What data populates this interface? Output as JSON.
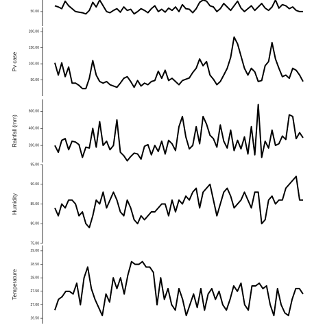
{
  "chart_data": [
    {
      "type": "line",
      "color": "#000000",
      "ylim": [
        25,
        70
      ],
      "yticks": [
        {
          "value": 50,
          "label": "50.00"
        }
      ],
      "values": [
        60,
        58,
        55,
        68,
        60,
        55,
        50,
        49,
        48,
        46,
        52,
        66,
        58,
        70,
        60,
        50,
        48,
        52,
        55,
        49,
        58,
        52,
        54,
        46,
        50,
        55,
        52,
        48,
        55,
        60,
        50,
        54,
        49,
        56,
        52,
        58,
        50,
        62,
        55,
        54,
        48,
        55,
        66,
        70,
        68,
        60,
        58,
        50,
        55,
        64,
        58,
        52,
        60,
        68,
        56,
        50,
        55,
        60,
        52,
        58,
        64,
        56,
        52,
        58,
        70,
        56,
        62,
        60,
        55,
        58,
        52,
        50,
        50
      ]
    },
    {
      "type": "line",
      "color": "#000000",
      "ylabel": "Pv case",
      "ylim": [
        0,
        213
      ],
      "yticks": [
        {
          "value": 50,
          "label": "50.00"
        },
        {
          "value": 100,
          "label": "100.00"
        },
        {
          "value": 150,
          "label": "150.00"
        },
        {
          "value": 200,
          "label": "200.00"
        }
      ],
      "values": [
        103,
        65,
        103,
        60,
        90,
        40,
        40,
        33,
        23,
        23,
        55,
        110,
        65,
        45,
        40,
        45,
        35,
        31,
        27,
        40,
        55,
        60,
        45,
        27,
        48,
        31,
        40,
        35,
        45,
        48,
        77,
        55,
        80,
        48,
        55,
        45,
        35,
        48,
        52,
        56,
        73,
        86,
        115,
        94,
        107,
        65,
        52,
        35,
        45,
        65,
        86,
        120,
        183,
        162,
        124,
        86,
        65,
        86,
        75,
        45,
        48,
        94,
        107,
        166,
        115,
        86,
        60,
        65,
        55,
        86,
        80,
        65,
        45
      ]
    },
    {
      "type": "line",
      "color": "#000000",
      "ylabel": "Rainfall (mm)",
      "ylim": [
        0,
        740
      ],
      "yticks": [
        {
          "value": 200,
          "label": "200.00"
        },
        {
          "value": 400,
          "label": "400.00"
        },
        {
          "value": 600,
          "label": "600.00"
        }
      ],
      "values": [
        200,
        120,
        260,
        280,
        150,
        250,
        240,
        210,
        60,
        180,
        170,
        400,
        180,
        480,
        200,
        250,
        150,
        200,
        500,
        120,
        80,
        20,
        70,
        110,
        100,
        40,
        190,
        210,
        90,
        200,
        130,
        250,
        100,
        260,
        220,
        140,
        420,
        540,
        300,
        160,
        200,
        420,
        220,
        540,
        450,
        320,
        280,
        180,
        440,
        250,
        170,
        380,
        140,
        260,
        160,
        300,
        100,
        420,
        90,
        680,
        60,
        250,
        170,
        380,
        200,
        220,
        310,
        270,
        560,
        540,
        280,
        350,
        290
      ]
    },
    {
      "type": "line",
      "color": "#000000",
      "ylabel": "Humidity",
      "ylim": [
        75,
        95
      ],
      "yticks": [
        {
          "value": 75,
          "label": "75.00"
        },
        {
          "value": 80,
          "label": "80.00"
        },
        {
          "value": 85,
          "label": "85.00"
        },
        {
          "value": 90,
          "label": "90.00"
        },
        {
          "value": 95,
          "label": "95.00"
        }
      ],
      "values": [
        84,
        82,
        85,
        84,
        86,
        86,
        85,
        82,
        83,
        80,
        79,
        82,
        86,
        85,
        88,
        84,
        86,
        88,
        86,
        83,
        82,
        86,
        84,
        81,
        80,
        82,
        81,
        82,
        83,
        83,
        84,
        85,
        85,
        82,
        86,
        83,
        86,
        85,
        87,
        86,
        88,
        89,
        84,
        88,
        89,
        90,
        86,
        82,
        85,
        88,
        89,
        87,
        84,
        85,
        86,
        88,
        86,
        84,
        88,
        88,
        80,
        81,
        86,
        87,
        85,
        86,
        86,
        89,
        90,
        91,
        92,
        86,
        86
      ]
    },
    {
      "type": "line",
      "color": "#000000",
      "ylabel": "Temperature",
      "ylim": [
        26.3,
        29.2
      ],
      "yticks": [
        {
          "value": 26.5,
          "label": "26.50"
        },
        {
          "value": 27,
          "label": "27.00"
        },
        {
          "value": 27.5,
          "label": "27.50"
        },
        {
          "value": 28,
          "label": "28.00"
        },
        {
          "value": 28.5,
          "label": "28.50"
        },
        {
          "value": 29,
          "label": "29.00"
        }
      ],
      "values": [
        26.8,
        27.2,
        27.3,
        27.5,
        27.5,
        27.4,
        27.8,
        27.0,
        28.0,
        28.4,
        27.6,
        27.2,
        26.9,
        26.6,
        27.4,
        27.1,
        28.0,
        27.6,
        28.0,
        27.4,
        28.1,
        28.6,
        28.5,
        28.5,
        28.6,
        28.4,
        28.4,
        28.2,
        27.0,
        28.0,
        27.2,
        27.6,
        27.0,
        26.8,
        27.6,
        27.2,
        26.6,
        27.0,
        27.4,
        26.9,
        27.6,
        26.8,
        27.4,
        27.6,
        27.2,
        27.5,
        27.0,
        26.8,
        27.2,
        27.7,
        27.5,
        27.8,
        27.0,
        26.8,
        27.7,
        27.7,
        27.8,
        27.6,
        27.7,
        27.0,
        26.6,
        27.6,
        27.0,
        26.7,
        26.6,
        27.2,
        27.6,
        27.6,
        27.4
      ]
    }
  ]
}
